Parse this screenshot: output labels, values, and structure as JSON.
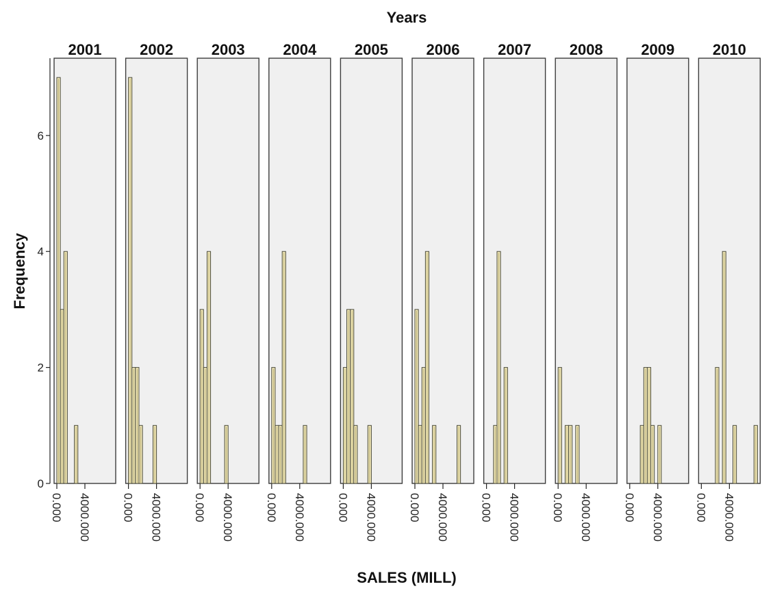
{
  "chart_data": {
    "type": "bar",
    "subtype": "paneled-histogram",
    "title": "Years",
    "xlabel": "SALES (MILL)",
    "ylabel": "Frequency",
    "xlim": [
      0,
      8000
    ],
    "x_tick_values": [
      0,
      4000
    ],
    "x_tick_labels": [
      "0.000",
      "4000.000"
    ],
    "ylim": [
      0,
      7.25
    ],
    "y_ticks": [
      0,
      2,
      4,
      6
    ],
    "bin_width": 500,
    "grid": false,
    "legend": "none",
    "colors": {
      "bar_fill": "#f1e8b8",
      "bar_stroke": "#4a4a3a",
      "panel_fill": "#f0f0f0"
    },
    "panels": [
      {
        "label": "2001",
        "bins": [
          {
            "x": 0,
            "y": 7
          },
          {
            "x": 500,
            "y": 3
          },
          {
            "x": 1000,
            "y": 4
          },
          {
            "x": 2500,
            "y": 1
          }
        ]
      },
      {
        "label": "2002",
        "bins": [
          {
            "x": 0,
            "y": 7
          },
          {
            "x": 500,
            "y": 2
          },
          {
            "x": 1000,
            "y": 2
          },
          {
            "x": 1500,
            "y": 1
          },
          {
            "x": 3500,
            "y": 1
          }
        ]
      },
      {
        "label": "2003",
        "bins": [
          {
            "x": 0,
            "y": 3
          },
          {
            "x": 500,
            "y": 2
          },
          {
            "x": 1000,
            "y": 4
          },
          {
            "x": 3500,
            "y": 1
          }
        ]
      },
      {
        "label": "2004",
        "bins": [
          {
            "x": 0,
            "y": 2
          },
          {
            "x": 500,
            "y": 1
          },
          {
            "x": 1000,
            "y": 1
          },
          {
            "x": 1500,
            "y": 4
          },
          {
            "x": 4500,
            "y": 1
          }
        ]
      },
      {
        "label": "2005",
        "bins": [
          {
            "x": 0,
            "y": 2
          },
          {
            "x": 500,
            "y": 3
          },
          {
            "x": 1000,
            "y": 3
          },
          {
            "x": 1500,
            "y": 1
          },
          {
            "x": 3500,
            "y": 1
          }
        ]
      },
      {
        "label": "2006",
        "bins": [
          {
            "x": 0,
            "y": 3
          },
          {
            "x": 500,
            "y": 1
          },
          {
            "x": 1000,
            "y": 2
          },
          {
            "x": 1500,
            "y": 4
          },
          {
            "x": 2500,
            "y": 1
          },
          {
            "x": 6000,
            "y": 1
          }
        ]
      },
      {
        "label": "2007",
        "bins": [
          {
            "x": 1000,
            "y": 1
          },
          {
            "x": 1500,
            "y": 4
          },
          {
            "x": 2500,
            "y": 2
          }
        ]
      },
      {
        "label": "2008",
        "bins": [
          {
            "x": 0,
            "y": 2
          },
          {
            "x": 1000,
            "y": 1
          },
          {
            "x": 1500,
            "y": 1
          },
          {
            "x": 2500,
            "y": 1
          }
        ]
      },
      {
        "label": "2009",
        "bins": [
          {
            "x": 1500,
            "y": 1
          },
          {
            "x": 2000,
            "y": 2
          },
          {
            "x": 2500,
            "y": 2
          },
          {
            "x": 3000,
            "y": 1
          },
          {
            "x": 4000,
            "y": 1
          }
        ]
      },
      {
        "label": "2010",
        "bins": [
          {
            "x": 2000,
            "y": 2
          },
          {
            "x": 3000,
            "y": 4
          },
          {
            "x": 4500,
            "y": 1
          },
          {
            "x": 7500,
            "y": 1
          }
        ]
      }
    ]
  }
}
